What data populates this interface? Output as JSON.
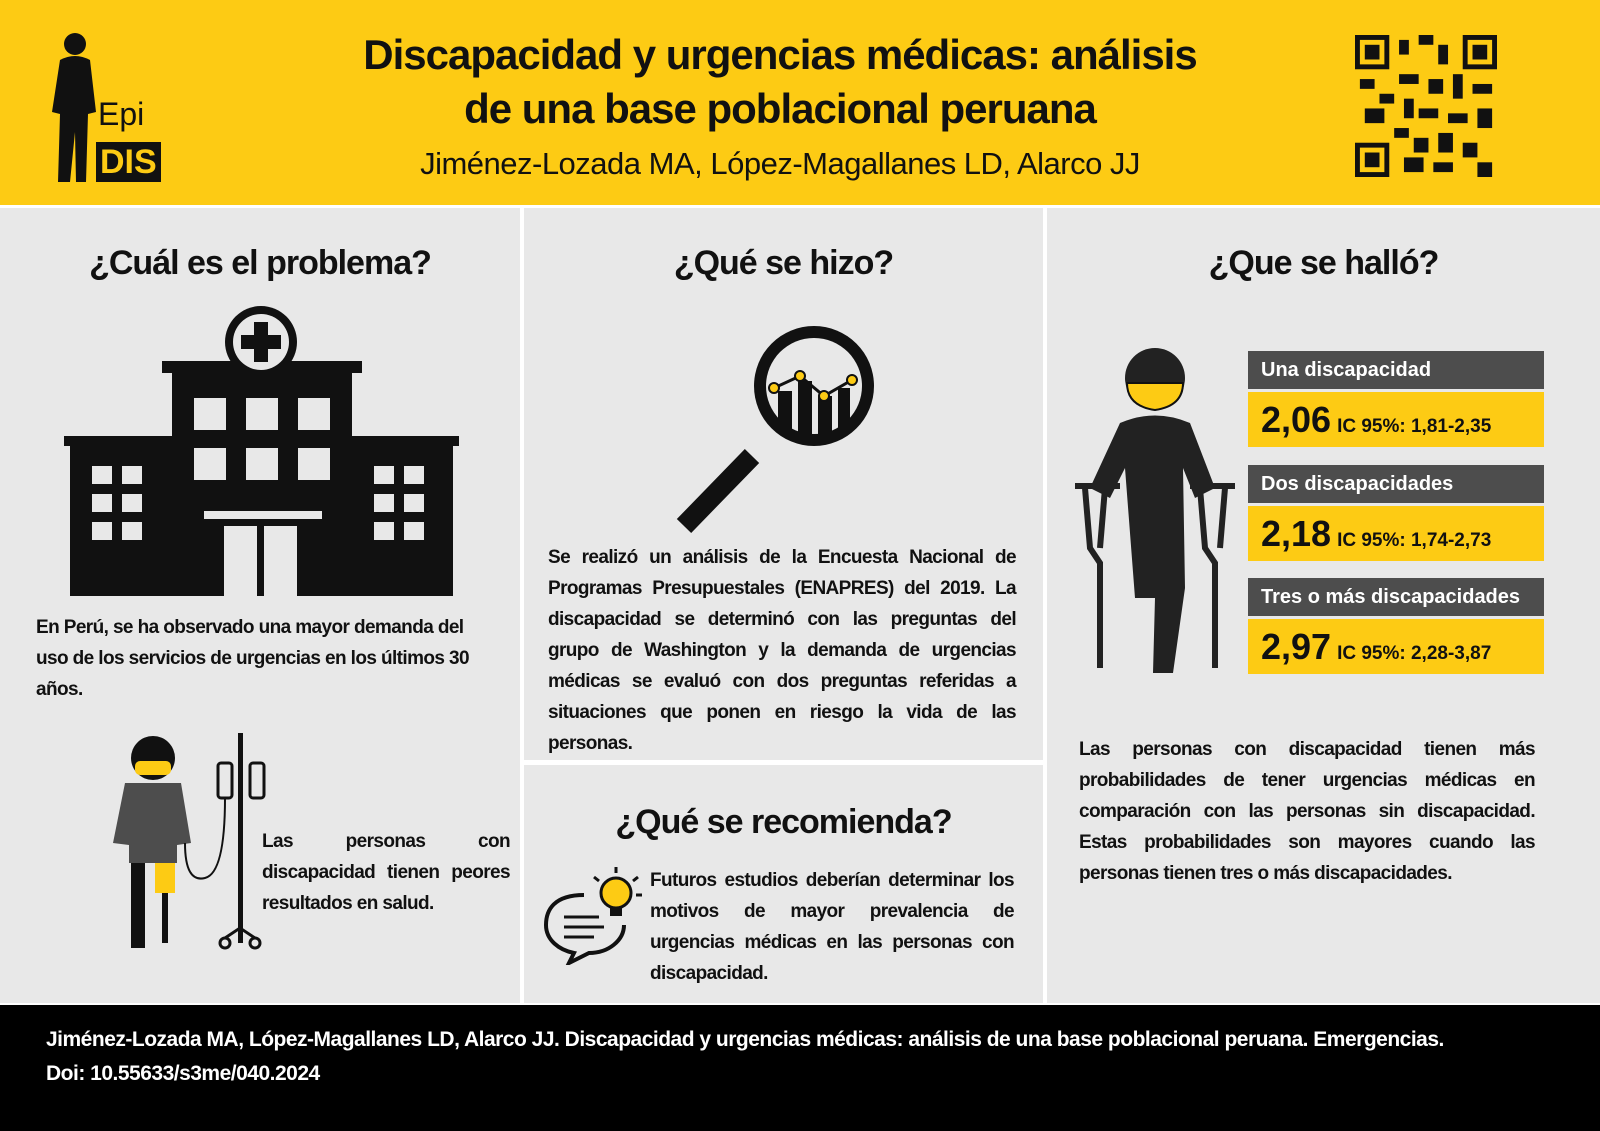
{
  "header": {
    "title_line1": "Discapacidad y urgencias médicas: análisis",
    "title_line2": "de una base poblacional peruana",
    "authors": "Jiménez-Lozada MA, López-Magallanes LD, Alarco JJ",
    "logo_text_epi": "Epi",
    "logo_text_dis": "DIS"
  },
  "problem": {
    "heading": "¿Cuál es el problema?",
    "text": "En Perú, se ha observado una mayor demanda del uso de los servicios de urgencias en los últimos 30 años.",
    "text2": "Las personas con discapacidad tienen peores resultados en salud."
  },
  "method": {
    "heading": "¿Qué se hizo?",
    "text": "Se realizó un análisis de la Encuesta Nacional de Programas Presupuestales (ENAPRES) del 2019. La discapacidad se determinó con las preguntas del grupo de Washington y la demanda de urgencias médicas se evaluó con dos preguntas referidas a situaciones que ponen en riesgo la vida de las personas."
  },
  "recommend": {
    "heading": "¿Qué se recomienda?",
    "text": "Futuros estudios deberían determinar los motivos de mayor prevalencia de urgencias médicas en las personas con discapacidad."
  },
  "findings": {
    "heading": "¿Que se halló?",
    "results": [
      {
        "label": "Una discapacidad",
        "value": "2,06",
        "ci": "IC 95%: 1,81-2,35"
      },
      {
        "label": "Dos discapacidades",
        "value": "2,18",
        "ci": "IC 95%: 1,74-2,73"
      },
      {
        "label": "Tres o más discapacidades",
        "value": "2,97",
        "ci": "IC 95%: 2,28-3,87"
      }
    ],
    "text": "Las personas con discapacidad tienen más probabilidades de tener urgencias médicas en comparación con las personas sin discapacidad. Estas probabilidades son mayores cuando las personas tienen tres o más discapacidades."
  },
  "footer": {
    "citation": "Jiménez-Lozada MA, López-Magallanes LD, Alarco JJ. Discapacidad y urgencias médicas: análisis de una base poblacional peruana. Emergencias.",
    "doi": "Doi: 10.55633/s3me/040.2024"
  },
  "colors": {
    "accent": "#fdcb14",
    "panel": "#e8e8e8",
    "label_bg": "#4d4d4d",
    "footer": "#000000"
  }
}
